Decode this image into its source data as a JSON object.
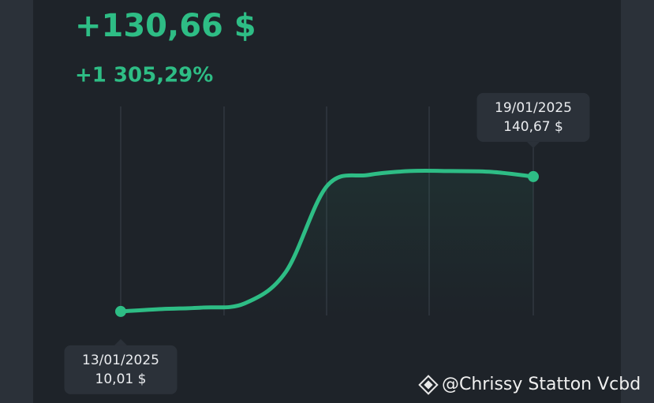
{
  "chart_data": {
    "type": "line",
    "title": "+130,66 $",
    "subtitle": "+1 305,29%",
    "categories": [
      "13/01/2025",
      null,
      null,
      null,
      null,
      null,
      null,
      null,
      null,
      null,
      "19/01/2025"
    ],
    "values": [
      10.01,
      12.3,
      13.8,
      17.7,
      48.2,
      131.5,
      142.2,
      146.0,
      146.0,
      145.2,
      140.67
    ],
    "value_labels": [
      "10,01 $",
      null,
      null,
      null,
      null,
      null,
      null,
      null,
      null,
      null,
      "140,67 $"
    ],
    "color": "#2ebd85",
    "ylim": [
      0,
      160
    ]
  },
  "watermark": "@Chrissy Statton Vcbd"
}
